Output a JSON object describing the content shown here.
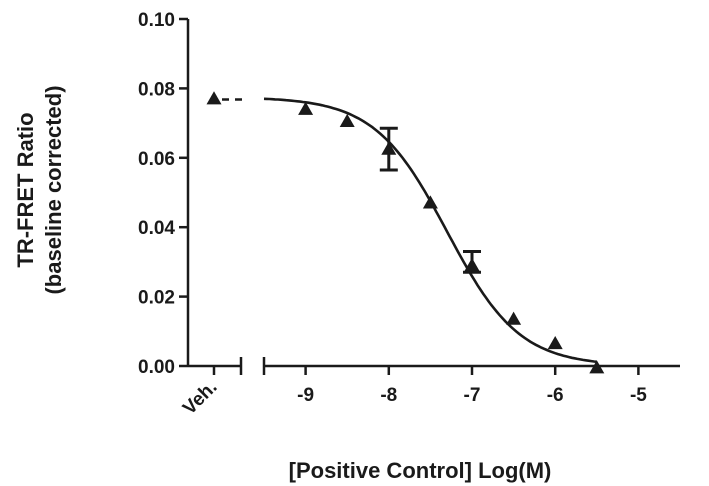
{
  "chart_data": {
    "type": "scatter",
    "title": "",
    "xlabel": "[Positive Control] Log(M)",
    "ylabel_lines": [
      "TR-FRET Ratio",
      "(baseline corrected)"
    ],
    "xlim": [
      -9.5,
      -4.5
    ],
    "ylim": [
      0.0,
      0.1
    ],
    "x_ticks": [
      -9,
      -8,
      -7,
      -6,
      -5
    ],
    "x_tick_labels": [
      "-9",
      "-8",
      "-7",
      "-6",
      "-5"
    ],
    "y_ticks": [
      0.0,
      0.02,
      0.04,
      0.06,
      0.08,
      0.1
    ],
    "y_tick_labels": [
      "0.00",
      "0.02",
      "0.04",
      "0.06",
      "0.08",
      "0.10"
    ],
    "vehicle_label": "Veh.",
    "vehicle_point": {
      "y": 0.077
    },
    "points": [
      {
        "x": -9.0,
        "y": 0.074
      },
      {
        "x": -8.5,
        "y": 0.0705
      },
      {
        "x": -8.0,
        "y": 0.0625,
        "err_low": 0.0565,
        "err_high": 0.0685
      },
      {
        "x": -7.5,
        "y": 0.047
      },
      {
        "x": -7.0,
        "y": 0.029,
        "err_low": 0.027,
        "err_high": 0.033
      },
      {
        "x": -6.5,
        "y": 0.0135
      },
      {
        "x": -6.0,
        "y": 0.0065
      },
      {
        "x": -5.5,
        "y": -0.0005
      }
    ],
    "fit": {
      "model": "four-parameter logistic",
      "top": 0.0775,
      "bottom": 0.0,
      "log_ic50": -7.3,
      "hill": 1.0,
      "x_range": [
        -9.5,
        -5.5
      ]
    },
    "grid": false,
    "legend": false
  }
}
